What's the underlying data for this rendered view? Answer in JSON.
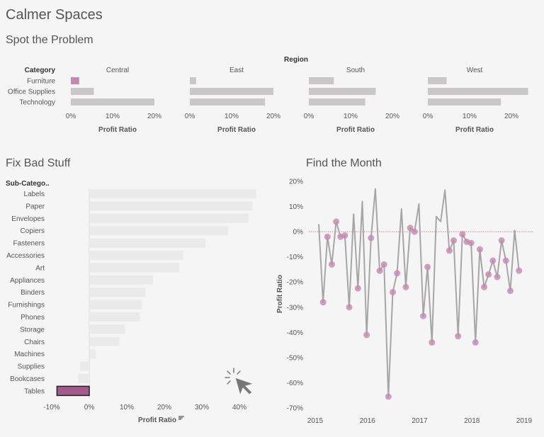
{
  "dashboard_title": "Calmer Spaces",
  "colors": {
    "bar_gray": "#c9c7c7",
    "bar_light": "#ebeaea",
    "highlight": "#c48aae",
    "highlight_dark": "#a45a8b",
    "line": "#a7a5a5",
    "zero_line": "#c0506a"
  },
  "chart_data": [
    {
      "id": "spot",
      "type": "bar",
      "title": "Spot the Problem",
      "column_header": "Region",
      "row_header": "Category",
      "regions": [
        "Central",
        "East",
        "South",
        "West"
      ],
      "categories": [
        "Furniture",
        "Office Supplies",
        "Technology"
      ],
      "series": [
        {
          "name": "Central",
          "values": [
            2,
            5.5,
            20
          ]
        },
        {
          "name": "East",
          "values": [
            1.5,
            20,
            18
          ]
        },
        {
          "name": "South",
          "values": [
            6,
            16,
            13.5
          ]
        },
        {
          "name": "West",
          "values": [
            4.5,
            24,
            17.5
          ]
        }
      ],
      "highlight": {
        "region": "Central",
        "category": "Furniture"
      },
      "xlabel": "Profit Ratio",
      "xticks": [
        "0%",
        "10%",
        "20%"
      ],
      "xlim": [
        0,
        24
      ]
    },
    {
      "id": "fix",
      "type": "bar",
      "title": "Fix Bad Stuff",
      "row_header": "Sub-Catego..",
      "categories": [
        "Labels",
        "Paper",
        "Envelopes",
        "Copiers",
        "Fasteners",
        "Accessories",
        "Art",
        "Appliances",
        "Binders",
        "Furnishings",
        "Phones",
        "Storage",
        "Chairs",
        "Machines",
        "Supplies",
        "Bookcases",
        "Tables"
      ],
      "values": [
        44.5,
        43.5,
        42.5,
        37,
        31,
        25,
        24,
        17,
        15,
        14,
        13.5,
        9.5,
        8,
        1.8,
        -2.5,
        -3,
        -8.6
      ],
      "highlight": "Tables",
      "xlabel": "Profit Ratio",
      "xticks": [
        "-10%",
        "0%",
        "10%",
        "20%",
        "30%",
        "40%"
      ],
      "xlim": [
        -10,
        45
      ]
    },
    {
      "id": "month",
      "type": "line",
      "title": "Find the Month",
      "ylabel": "Profit Ratio",
      "yticks": [
        "20%",
        "10%",
        "0%",
        "-10%",
        "-20%",
        "-30%",
        "-40%",
        "-50%",
        "-60%",
        "-70%"
      ],
      "ylim": [
        -70,
        20
      ],
      "xticks": [
        "2015",
        "2016",
        "2017",
        "2018",
        "2019"
      ],
      "xlim": [
        2015,
        2019
      ],
      "values": [
        3,
        -28,
        -2,
        -13,
        4,
        -2,
        -1.5,
        -30,
        7,
        -22.5,
        12,
        -41,
        -2.5,
        17,
        -15.5,
        -13,
        -65.5,
        -24,
        -16.5,
        9,
        -22,
        1.5,
        0,
        11,
        -33.5,
        -14,
        -44,
        6,
        4,
        16.5,
        -7.5,
        -3.5,
        -41.5,
        -1,
        -4,
        -4.5,
        -44,
        -7,
        -22,
        -17,
        -11.5,
        -18,
        -3.5,
        -11.5,
        -23.5,
        0.5,
        -15.5
      ],
      "highlighted_points": [
        false,
        true,
        true,
        true,
        true,
        true,
        true,
        true,
        false,
        true,
        false,
        true,
        true,
        false,
        true,
        true,
        true,
        true,
        true,
        false,
        true,
        true,
        true,
        false,
        true,
        true,
        true,
        false,
        false,
        false,
        true,
        true,
        true,
        true,
        true,
        true,
        true,
        true,
        true,
        true,
        true,
        true,
        true,
        true,
        true,
        false,
        true
      ]
    }
  ]
}
